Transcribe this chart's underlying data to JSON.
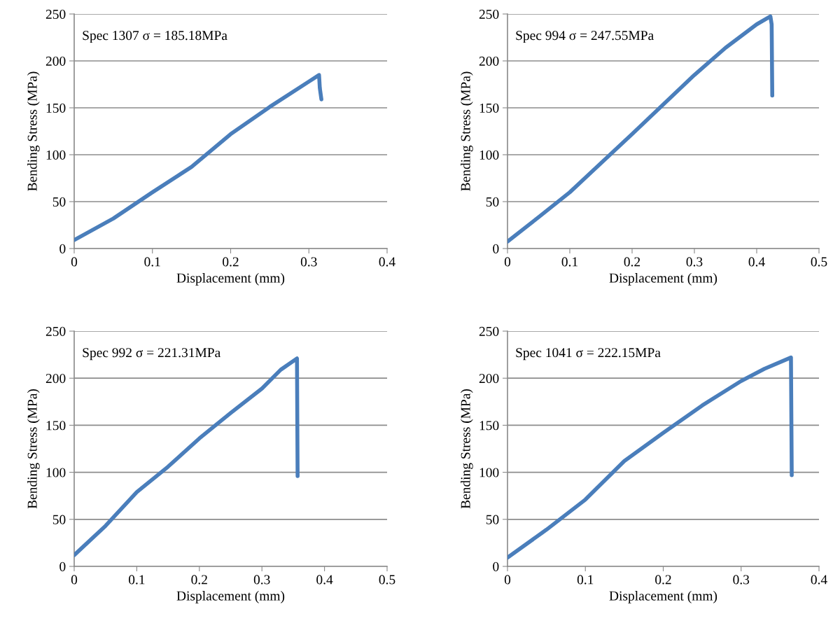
{
  "chart_data": [
    {
      "type": "line",
      "xlabel": "Displacement (mm)",
      "ylabel": "Bending Stress (MPa)",
      "annotations": [
        "Spec 1307 σ = 185.18MPa"
      ],
      "xlim": [
        0,
        0.4
      ],
      "xticks": [
        0,
        0.1,
        0.2,
        0.3,
        0.4
      ],
      "ylim": [
        0,
        250
      ],
      "yticks": [
        0,
        50,
        100,
        150,
        200,
        250
      ],
      "grid": "y",
      "marker": "none",
      "line_style": "solid",
      "series": [
        {
          "color": "#4a7ebb",
          "x": [
            0,
            0.05,
            0.1,
            0.15,
            0.2,
            0.25,
            0.3,
            0.313,
            0.314,
            0.316
          ],
          "values": [
            9,
            32,
            60,
            87,
            122,
            151,
            178,
            185,
            171,
            159
          ]
        }
      ]
    },
    {
      "type": "line",
      "xlabel": "Displacement (mm)",
      "ylabel": "Bending Stress (MPa)",
      "annotations": [
        "Spec 994 σ = 247.55MPa"
      ],
      "xlim": [
        0,
        0.5
      ],
      "xticks": [
        0,
        0.1,
        0.2,
        0.3,
        0.4,
        0.5
      ],
      "ylim": [
        0,
        250
      ],
      "yticks": [
        0,
        50,
        100,
        150,
        200,
        250
      ],
      "grid": "y",
      "marker": "none",
      "line_style": "solid",
      "series": [
        {
          "color": "#4a7ebb",
          "x": [
            0,
            0.05,
            0.1,
            0.2,
            0.3,
            0.35,
            0.4,
            0.422,
            0.424,
            0.425
          ],
          "values": [
            7.5,
            33.5,
            60,
            122,
            185,
            214,
            239,
            247.5,
            239,
            163
          ]
        }
      ]
    },
    {
      "type": "line",
      "xlabel": "Displacement (mm)",
      "ylabel": "Bending Stress (MPa)",
      "annotations": [
        "Spec 992 σ = 221.31MPa"
      ],
      "xlim": [
        0,
        0.5
      ],
      "xticks": [
        0,
        0.1,
        0.2,
        0.3,
        0.4,
        0.5
      ],
      "ylim": [
        0,
        250
      ],
      "yticks": [
        0,
        50,
        100,
        150,
        200,
        250
      ],
      "grid": "y",
      "marker": "none",
      "line_style": "solid",
      "series": [
        {
          "color": "#4a7ebb",
          "x": [
            0,
            0.05,
            0.1,
            0.15,
            0.2,
            0.25,
            0.3,
            0.33,
            0.356,
            0.357
          ],
          "values": [
            12,
            43,
            79,
            106,
            136,
            163,
            189,
            209,
            221,
            96
          ]
        }
      ]
    },
    {
      "type": "line",
      "xlabel": "Displacement (mm)",
      "ylabel": "Bending Stress (MPa)",
      "annotations": [
        "Spec 1041 σ = 222.15MPa"
      ],
      "xlim": [
        0,
        0.4
      ],
      "xticks": [
        0,
        0.1,
        0.2,
        0.3,
        0.4
      ],
      "ylim": [
        0,
        250
      ],
      "yticks": [
        0,
        50,
        100,
        150,
        200,
        250
      ],
      "grid": "y",
      "marker": "none",
      "line_style": "solid",
      "series": [
        {
          "color": "#4a7ebb",
          "x": [
            0,
            0.05,
            0.1,
            0.15,
            0.2,
            0.25,
            0.3,
            0.33,
            0.364,
            0.365
          ],
          "values": [
            9.4,
            39,
            71,
            112,
            142,
            171,
            197,
            210,
            222,
            97
          ]
        }
      ]
    }
  ]
}
